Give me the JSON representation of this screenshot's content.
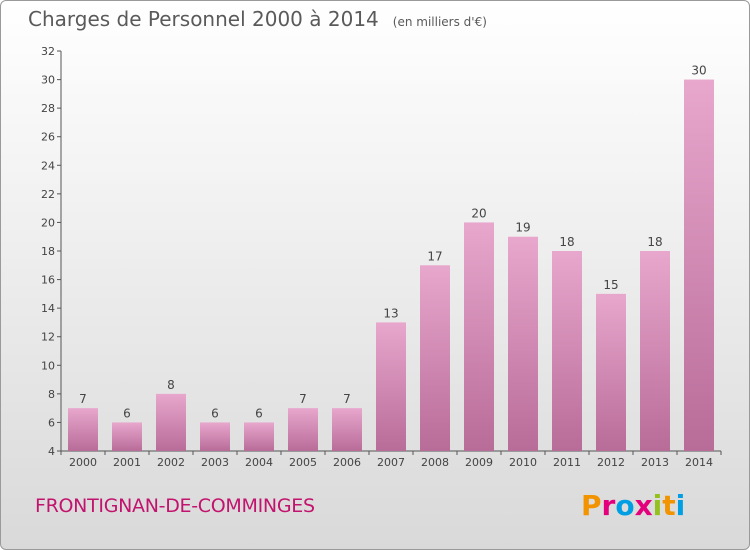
{
  "header": {
    "title": "Charges de Personnel 2000 à 2014",
    "subtitle": "(en milliers d'€)"
  },
  "footer": {
    "city": "FRONTIGNAN-DE-COMMINGES",
    "logo": "Proxiti",
    "logo_colors": [
      "#f29400",
      "#e4007c",
      "#009fe3",
      "#e4007c",
      "#95c11f",
      "#f29400",
      "#009fe3"
    ]
  },
  "colors": {
    "bar_top": "#e8a7cd",
    "bar_bottom": "#b86c98",
    "city": "#c2146e",
    "axis": "#555555"
  },
  "chart_data": {
    "type": "bar",
    "categories": [
      "2000",
      "2001",
      "2002",
      "2003",
      "2004",
      "2005",
      "2006",
      "2007",
      "2008",
      "2009",
      "2010",
      "2011",
      "2012",
      "2013",
      "2014"
    ],
    "values": [
      7,
      6,
      8,
      6,
      6,
      7,
      7,
      13,
      17,
      20,
      19,
      18,
      15,
      18,
      30
    ],
    "title": "Charges de Personnel 2000 à 2014",
    "ylabel": "",
    "xlabel": "",
    "ylim": [
      4,
      32
    ],
    "yticks": [
      4,
      6,
      8,
      10,
      12,
      14,
      16,
      18,
      20,
      22,
      24,
      26,
      28,
      30,
      32
    ],
    "grid": false,
    "data_labels": true
  }
}
